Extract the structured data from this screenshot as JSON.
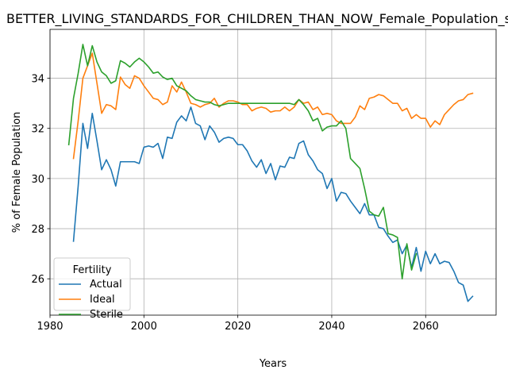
{
  "chart_data": {
    "type": "line",
    "title": "BETTER_LIVING_STANDARDS_FOR_CHILDREN_THAN_NOW_Female_Population_share",
    "xlabel": "Years",
    "ylabel": "% of Female Population",
    "xlim": [
      1980,
      2075
    ],
    "ylim": [
      24.55,
      35.95
    ],
    "xticks": [
      1980,
      2000,
      2020,
      2040,
      2060
    ],
    "yticks": [
      26,
      28,
      30,
      32,
      34
    ],
    "grid": true,
    "legend": {
      "title": "Fertility",
      "position": "lower-left"
    },
    "series": [
      {
        "name": "Actual",
        "color": "#1f77b4",
        "x": [
          1985,
          1986,
          1987,
          1988,
          1989,
          1990,
          1991,
          1992,
          1993,
          1994,
          1995,
          1996,
          1997,
          1998,
          1999,
          2000,
          2001,
          2002,
          2003,
          2004,
          2005,
          2006,
          2007,
          2008,
          2009,
          2010,
          2011,
          2012,
          2013,
          2014,
          2015,
          2016,
          2017,
          2018,
          2019,
          2020,
          2021,
          2022,
          2023,
          2024,
          2025,
          2026,
          2027,
          2028,
          2029,
          2030,
          2031,
          2032,
          2033,
          2034,
          2035,
          2036,
          2037,
          2038,
          2039,
          2040,
          2041,
          2042,
          2043,
          2044,
          2045,
          2046,
          2047,
          2048,
          2049,
          2050,
          2051,
          2052,
          2053,
          2054,
          2055,
          2056,
          2057,
          2058,
          2059,
          2060,
          2061,
          2062,
          2063,
          2064,
          2065,
          2066,
          2067,
          2068,
          2069,
          2070
        ],
        "values": [
          27.5,
          29.7,
          32.2,
          31.2,
          32.6,
          31.5,
          30.35,
          30.75,
          30.35,
          29.7,
          30.67,
          30.67,
          30.67,
          30.67,
          30.6,
          31.25,
          31.3,
          31.25,
          31.4,
          30.8,
          31.65,
          31.6,
          32.25,
          32.5,
          32.3,
          32.85,
          32.2,
          32.1,
          31.55,
          32.1,
          31.85,
          31.45,
          31.6,
          31.65,
          31.6,
          31.35,
          31.35,
          31.1,
          30.7,
          30.45,
          30.75,
          30.2,
          30.6,
          29.95,
          30.5,
          30.45,
          30.85,
          30.8,
          31.4,
          31.5,
          30.95,
          30.7,
          30.35,
          30.2,
          29.6,
          30.0,
          29.1,
          29.45,
          29.4,
          29.1,
          28.85,
          28.6,
          29.0,
          28.55,
          28.55,
          28.05,
          28.0,
          27.7,
          27.45,
          27.55,
          27.0,
          27.35,
          26.45,
          27.25,
          26.3,
          27.1,
          26.6,
          27.0,
          26.6,
          26.7,
          26.65,
          26.3,
          25.85,
          25.75,
          25.1,
          25.3
        ]
      },
      {
        "name": "Ideal",
        "color": "#ff7f0e",
        "x": [
          1985,
          1986,
          1987,
          1988,
          1989,
          1990,
          1991,
          1992,
          1993,
          1994,
          1995,
          1996,
          1997,
          1998,
          1999,
          2000,
          2001,
          2002,
          2003,
          2004,
          2005,
          2006,
          2007,
          2008,
          2009,
          2010,
          2011,
          2012,
          2013,
          2014,
          2015,
          2016,
          2017,
          2018,
          2019,
          2020,
          2021,
          2022,
          2023,
          2024,
          2025,
          2026,
          2027,
          2028,
          2029,
          2030,
          2031,
          2032,
          2033,
          2034,
          2035,
          2036,
          2037,
          2038,
          2039,
          2040,
          2041,
          2042,
          2043,
          2044,
          2045,
          2046,
          2047,
          2048,
          2049,
          2050,
          2051,
          2052,
          2053,
          2054,
          2055,
          2056,
          2057,
          2058,
          2059,
          2060,
          2061,
          2062,
          2063,
          2064,
          2065,
          2066,
          2067,
          2068,
          2069,
          2070
        ],
        "values": [
          30.8,
          32.3,
          34.0,
          34.5,
          35.0,
          33.8,
          32.6,
          32.95,
          32.9,
          32.75,
          34.05,
          33.75,
          33.6,
          34.1,
          34.0,
          33.7,
          33.45,
          33.2,
          33.15,
          32.95,
          33.05,
          33.7,
          33.45,
          33.85,
          33.45,
          33.0,
          32.95,
          32.85,
          32.95,
          33.0,
          33.2,
          32.85,
          33.0,
          33.1,
          33.1,
          33.05,
          32.95,
          32.95,
          32.7,
          32.8,
          32.85,
          32.8,
          32.65,
          32.7,
          32.7,
          32.85,
          32.7,
          32.85,
          33.15,
          33.0,
          33.05,
          32.75,
          32.85,
          32.55,
          32.6,
          32.55,
          32.3,
          32.2,
          32.2,
          32.2,
          32.45,
          32.9,
          32.75,
          33.2,
          33.25,
          33.35,
          33.3,
          33.15,
          33.0,
          33.0,
          32.7,
          32.8,
          32.4,
          32.55,
          32.4,
          32.4,
          32.05,
          32.3,
          32.15,
          32.55,
          32.75,
          32.95,
          33.1,
          33.15,
          33.35,
          33.4
        ]
      },
      {
        "name": "Sterile",
        "color": "#2ca02c",
        "x": [
          1984,
          1985,
          1986,
          1987,
          1988,
          1989,
          1990,
          1991,
          1992,
          1993,
          1994,
          1995,
          1996,
          1997,
          1998,
          1999,
          2000,
          2001,
          2002,
          2003,
          2004,
          2005,
          2006,
          2007,
          2008,
          2009,
          2010,
          2011,
          2012,
          2013,
          2014,
          2015,
          2016,
          2017,
          2018,
          2019,
          2020,
          2021,
          2022,
          2023,
          2024,
          2025,
          2026,
          2027,
          2028,
          2029,
          2030,
          2031,
          2032,
          2033,
          2034,
          2035,
          2036,
          2037,
          2038,
          2039,
          2040,
          2041,
          2042,
          2043,
          2044,
          2045,
          2046,
          2047,
          2048,
          2049,
          2050,
          2051,
          2052,
          2053,
          2054,
          2055,
          2056,
          2057,
          2058
        ],
        "values": [
          31.35,
          33.2,
          34.2,
          35.35,
          34.5,
          35.3,
          34.65,
          34.25,
          34.1,
          33.8,
          33.9,
          34.7,
          34.6,
          34.45,
          34.65,
          34.8,
          34.65,
          34.45,
          34.2,
          34.25,
          34.05,
          33.95,
          34.0,
          33.7,
          33.6,
          33.5,
          33.3,
          33.15,
          33.1,
          33.05,
          33.05,
          32.95,
          32.9,
          32.95,
          33.0,
          33.0,
          33.0,
          33.0,
          33.0,
          33.0,
          33.0,
          33.0,
          33.0,
          33.0,
          33.0,
          33.0,
          33.0,
          33.0,
          32.95,
          33.15,
          32.95,
          32.7,
          32.3,
          32.4,
          31.9,
          32.05,
          32.1,
          32.1,
          32.3,
          32.0,
          30.8,
          30.6,
          30.4,
          29.6,
          28.7,
          28.55,
          28.5,
          28.85,
          27.8,
          27.75,
          27.65,
          26.0,
          27.4,
          26.35,
          27.0
        ]
      }
    ]
  }
}
